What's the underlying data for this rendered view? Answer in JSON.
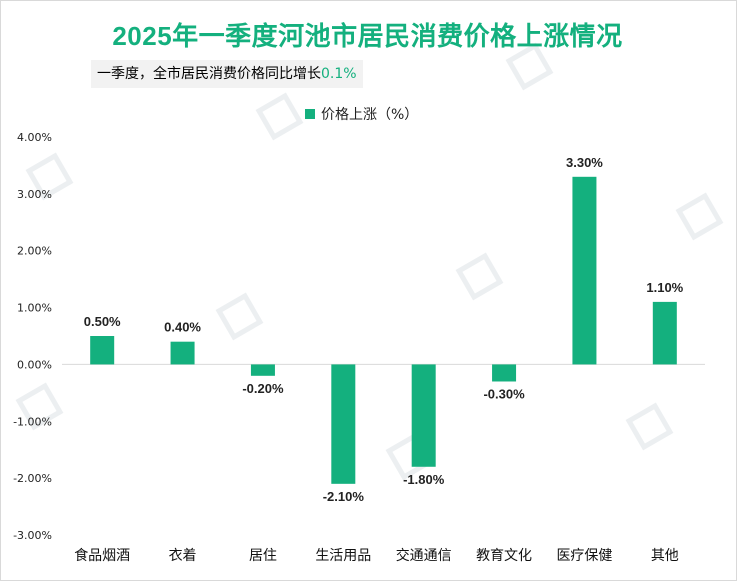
{
  "title": "2025年一季度河池市居民消费价格上涨情况",
  "note": {
    "text": "一季度，全市居民消费价格同比增长",
    "highlight": "0.1%"
  },
  "colors": {
    "bar": "#14b07e",
    "title": "#14b07e",
    "axis_text": "#222222",
    "gridline": "#d9d9d9"
  },
  "chart_data": {
    "type": "bar",
    "categories": [
      "食品烟酒",
      "衣着",
      "居住",
      "生活用品",
      "交通通信",
      "教育文化",
      "医疗保健",
      "其他"
    ],
    "series": [
      {
        "name": "价格上涨（%）",
        "values": [
          0.5,
          0.4,
          -0.2,
          -2.1,
          -1.8,
          -0.3,
          3.3,
          1.1
        ],
        "labels": [
          "0.50%",
          "0.40%",
          "-0.20%",
          "-2.10%",
          "-1.80%",
          "-0.30%",
          "3.30%",
          "1.10%"
        ]
      }
    ],
    "y_ticks": [
      "4.00%",
      "3.00%",
      "2.00%",
      "1.00%",
      "0.00%",
      "-1.00%",
      "-2.00%",
      "-3.00%"
    ],
    "ylim": [
      -3,
      4
    ],
    "grid": false,
    "legend_position": "top-center"
  }
}
